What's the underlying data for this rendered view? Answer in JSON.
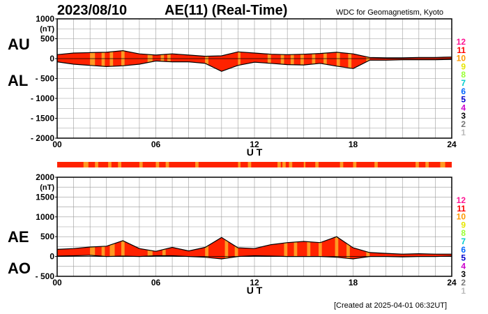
{
  "header": {
    "date": "2023/08/10",
    "title": "AE(11) (Real-Time)",
    "source": "WDC for Geomagnetism, Kyoto"
  },
  "footer": {
    "created": "[Created at 2025-04-01 06:32UT]"
  },
  "labels": {
    "au": "AU",
    "al": "AL",
    "ae": "AE",
    "ao": "AO"
  },
  "station_count_legend": [
    {
      "label": "12",
      "color": "#ff1493"
    },
    {
      "label": "11",
      "color": "#ff0000"
    },
    {
      "label": "10",
      "color": "#ff9900"
    },
    {
      "label": "9",
      "color": "#e6e600"
    },
    {
      "label": "8",
      "color": "#99ff33"
    },
    {
      "label": "7",
      "color": "#00cccc"
    },
    {
      "label": "6",
      "color": "#0066ff"
    },
    {
      "label": "5",
      "color": "#0000cc"
    },
    {
      "label": "4",
      "color": "#cc00cc"
    },
    {
      "label": "3",
      "color": "#000000"
    },
    {
      "label": "2",
      "color": "#777777"
    },
    {
      "label": "1",
      "color": "#bbbbbb"
    }
  ],
  "colors": {
    "fill_main": "#ff2200",
    "fill_alt": "#ff9922",
    "grid": "#999999",
    "line": "#000000"
  },
  "chart_data": [
    {
      "type": "area",
      "panel": "AU/AL",
      "ylabel": "(nT)",
      "xlabel": "U T",
      "ylim": [
        -2000,
        1000
      ],
      "yticks": [
        1000,
        500,
        0,
        -500,
        -1000,
        -1500,
        -2000
      ],
      "ytick_labels": [
        "1000",
        "500",
        "0",
        "- 500",
        "- 1000",
        "- 1500",
        "- 2000"
      ],
      "xlim": [
        0,
        24
      ],
      "xticks": [
        0,
        6,
        12,
        18,
        24
      ],
      "xtick_labels": [
        "00",
        "06",
        "12",
        "18",
        "24"
      ],
      "grid": true,
      "x": [
        0,
        1,
        2,
        3,
        4,
        5,
        6,
        7,
        8,
        9,
        10,
        11,
        12,
        13,
        14,
        15,
        16,
        17,
        18,
        19,
        20,
        21,
        22,
        23,
        24
      ],
      "series": [
        {
          "name": "AU",
          "values": [
            100,
            140,
            150,
            160,
            200,
            120,
            90,
            120,
            90,
            60,
            70,
            170,
            140,
            110,
            100,
            110,
            130,
            160,
            120,
            30,
            20,
            20,
            30,
            30,
            40
          ]
        },
        {
          "name": "AL",
          "values": [
            -80,
            -140,
            -170,
            -200,
            -180,
            -140,
            -60,
            -80,
            -80,
            -120,
            -320,
            -170,
            -90,
            -120,
            -150,
            -160,
            -120,
            -190,
            -250,
            -40,
            -40,
            -30,
            -30,
            -30,
            -20
          ]
        }
      ]
    },
    {
      "type": "area",
      "panel": "AE/AO",
      "ylabel": "(nT)",
      "xlabel": "U T",
      "ylim": [
        -500,
        2000
      ],
      "yticks": [
        2000,
        1500,
        1000,
        500,
        0,
        -500
      ],
      "ytick_labels": [
        "2000",
        "1500",
        "1000",
        "500",
        "0",
        "- 500"
      ],
      "xlim": [
        0,
        24
      ],
      "xticks": [
        0,
        6,
        12,
        18,
        24
      ],
      "xtick_labels": [
        "00",
        "06",
        "12",
        "18",
        "24"
      ],
      "grid": true,
      "x": [
        0,
        1,
        2,
        3,
        4,
        5,
        6,
        7,
        8,
        9,
        10,
        11,
        12,
        13,
        14,
        15,
        16,
        17,
        18,
        19,
        20,
        21,
        22,
        23,
        24
      ],
      "series": [
        {
          "name": "AE",
          "values": [
            180,
            200,
            240,
            260,
            400,
            200,
            130,
            230,
            140,
            230,
            480,
            220,
            200,
            300,
            350,
            380,
            350,
            500,
            220,
            100,
            80,
            60,
            70,
            60,
            60
          ]
        },
        {
          "name": "AO",
          "values": [
            10,
            20,
            30,
            0,
            10,
            0,
            20,
            20,
            0,
            -20,
            -60,
            0,
            20,
            10,
            0,
            0,
            0,
            -20,
            -60,
            0,
            0,
            -10,
            0,
            0,
            10
          ]
        }
      ]
    }
  ]
}
